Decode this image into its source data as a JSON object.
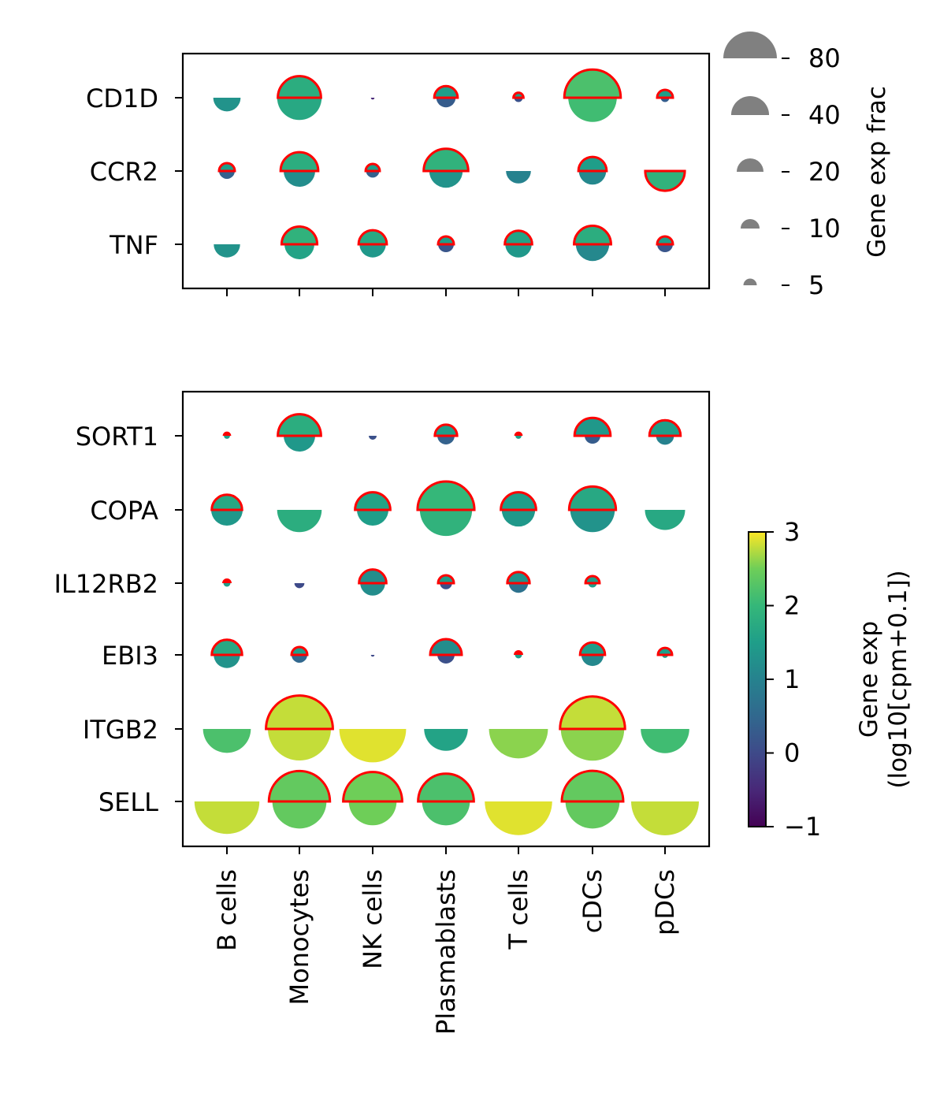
{
  "chart_data": {
    "type": "dot-plot",
    "categories": [
      "B cells",
      "Monocytes",
      "NK cells",
      "Plasmablasts",
      "T cells",
      "cDCs",
      "pDCs"
    ],
    "panels": [
      {
        "genes": [
          "CD1D",
          "CCR2",
          "TNF"
        ],
        "bottom": {
          "frac": [
            [
              30,
              80,
              0.5,
              15,
              3,
              95,
              3
            ],
            [
              10,
              40,
              7,
              45,
              25,
              30,
              50
            ],
            [
              28,
              36,
              28,
              10,
              28,
              45,
              10
            ]
          ],
          "exp": [
            [
              1.3,
              1.7,
              -0.5,
              0.3,
              0.1,
              2.1,
              0.3
            ],
            [
              0.4,
              1.2,
              0.4,
              1.3,
              1.0,
              1.1,
              1.5
            ],
            [
              1.3,
              1.6,
              1.4,
              0.2,
              1.4,
              1.1,
              0.2
            ]
          ]
        },
        "top": {
          "frac": [
            [
              0,
              75,
              0,
              22,
              4,
              128,
              10
            ],
            [
              10,
              57,
              8,
              80,
              0,
              32,
              0
            ],
            [
              0,
              51,
              32,
              10,
              30,
              55,
              10
            ]
          ],
          "exp": [
            [
              0,
              1.8,
              0,
              1.5,
              1.5,
              2.2,
              1.5
            ],
            [
              1.5,
              1.8,
              1.5,
              1.9,
              0,
              1.5,
              0
            ],
            [
              0,
              1.9,
              1.7,
              1.5,
              1.6,
              1.8,
              1.5
            ]
          ]
        },
        "pdcs_ccr2_top_flipped": {
          "frac": 63,
          "exp": 1.9
        }
      },
      {
        "genes": [
          "SORT1",
          "COPA",
          "IL12RB2",
          "EBI3",
          "ITGB2",
          "SELL"
        ],
        "bottom": {
          "frac": [
            [
              1.5,
              40,
              2.5,
              12,
              1.5,
              10,
              13
            ],
            [
              40,
              80,
              40,
              110,
              45,
              80,
              65
            ],
            [
              2,
              4,
              25,
              6,
              15,
              3,
              0
            ],
            [
              28,
              10,
              0.5,
              12,
              2,
              20,
              1.5
            ],
            [
              92,
              160,
              180,
              77,
              140,
              162,
              95
            ],
            [
              170,
              118,
              92,
              92,
              183,
              118,
              185
            ]
          ],
          "exp": [
            [
              1.5,
              1.4,
              0.1,
              0.4,
              1.5,
              0.3,
              1.0
            ],
            [
              1.4,
              1.8,
              1.5,
              1.9,
              1.4,
              1.3,
              1.7
            ],
            [
              1.5,
              0.0,
              1.2,
              0.1,
              0.7,
              1.5,
              0
            ],
            [
              1.3,
              0.5,
              0.0,
              0.1,
              1.5,
              1.1,
              1.5
            ],
            [
              2.2,
              2.8,
              2.9,
              1.6,
              2.6,
              2.6,
              2.1
            ],
            [
              2.8,
              2.4,
              2.5,
              2.2,
              2.9,
              2.4,
              2.8
            ]
          ]
        },
        "top": {
          "frac": [
            [
              0,
              75,
              0,
              20,
              0,
              52,
              39
            ],
            [
              37,
              0,
              50,
              130,
              50,
              88,
              0
            ],
            [
              0,
              0,
              30,
              10,
              20,
              8,
              0
            ],
            [
              37,
              10,
              0,
              40,
              0,
              25,
              8
            ],
            [
              0,
              180,
              0,
              0,
              0,
              170,
              0
            ],
            [
              0,
              150,
              140,
              125,
              0,
              152,
              0
            ]
          ],
          "exp": [
            [
              0,
              1.8,
              0,
              1.5,
              0,
              1.4,
              1.5
            ],
            [
              1.7,
              0,
              1.6,
              2.0,
              1.5,
              1.7,
              0
            ],
            [
              0,
              0,
              1.2,
              1.5,
              1.3,
              1.5,
              0
            ],
            [
              1.7,
              1.5,
              0,
              1.2,
              0,
              1.5,
              1.5
            ],
            [
              0,
              2.8,
              0,
              0,
              0,
              2.8,
              0
            ],
            [
              0,
              2.4,
              2.5,
              2.2,
              0,
              2.4,
              0
            ]
          ]
        }
      }
    ],
    "size_legend": {
      "label": "Gene exp frac",
      "ticks": [
        80,
        40,
        20,
        10,
        5
      ]
    },
    "colorbar": {
      "label_line1": "Gene exp",
      "label_line2": "(log10[cpm+0.1])",
      "min": -1,
      "max": 3,
      "ticks": [
        3,
        2,
        1,
        0,
        -1
      ],
      "tick_labels": [
        "3",
        "2",
        "1",
        "0",
        "−1"
      ]
    },
    "colors": {
      "outline": "#ff0000",
      "size_marker": "#808080"
    }
  }
}
